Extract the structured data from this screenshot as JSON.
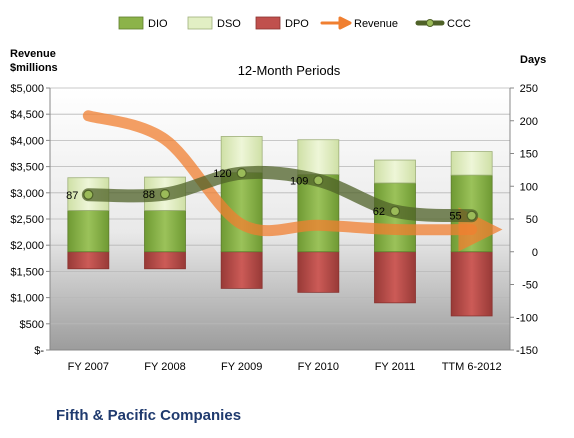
{
  "chart_data": {
    "type": "bar",
    "title": "12-Month Periods",
    "company": "Fifth & Pacific Companies",
    "left_axis": {
      "label_line1": "Revenue",
      "label_line2": "$millions",
      "ylim": [
        0,
        5000
      ],
      "ticks": [
        "$-",
        "$500",
        "$1,000",
        "$1,500",
        "$2,000",
        "$2,500",
        "$3,000",
        "$3,500",
        "$4,000",
        "$4,500",
        "$5,000"
      ]
    },
    "right_axis": {
      "label": "Days",
      "ylim": [
        -150,
        250
      ],
      "ticks": [
        "-150",
        "-100",
        "-50",
        "0",
        "50",
        "100",
        "150",
        "200",
        "250"
      ]
    },
    "categories": [
      "FY 2007",
      "FY 2008",
      "FY 2009",
      "FY 2010",
      "FY 2011",
      "TTM 6-2012"
    ],
    "series": [
      {
        "name": "DIO",
        "axis": "right",
        "color": "#8cb34a",
        "values": [
          63,
          63,
          121,
          118,
          105,
          117
        ]
      },
      {
        "name": "DSO",
        "axis": "right",
        "color": "#e2efc4",
        "values": [
          50,
          51,
          55,
          53,
          35,
          36
        ]
      },
      {
        "name": "DPO",
        "axis": "right",
        "color": "#c0504d",
        "values": [
          -26,
          -26,
          -56,
          -62,
          -78,
          -98
        ]
      },
      {
        "name": "Revenue",
        "axis": "left",
        "color": "#f07f30",
        "values": [
          4470,
          4020,
          2400,
          2380,
          2300,
          2300
        ]
      },
      {
        "name": "CCC",
        "axis": "right",
        "color": "#4f6228",
        "values": [
          87,
          88,
          120,
          109,
          62,
          55
        ],
        "labels": [
          "87",
          "88",
          "120",
          "109",
          "62",
          "55"
        ]
      }
    ],
    "grid": true,
    "legend_position": "top"
  }
}
